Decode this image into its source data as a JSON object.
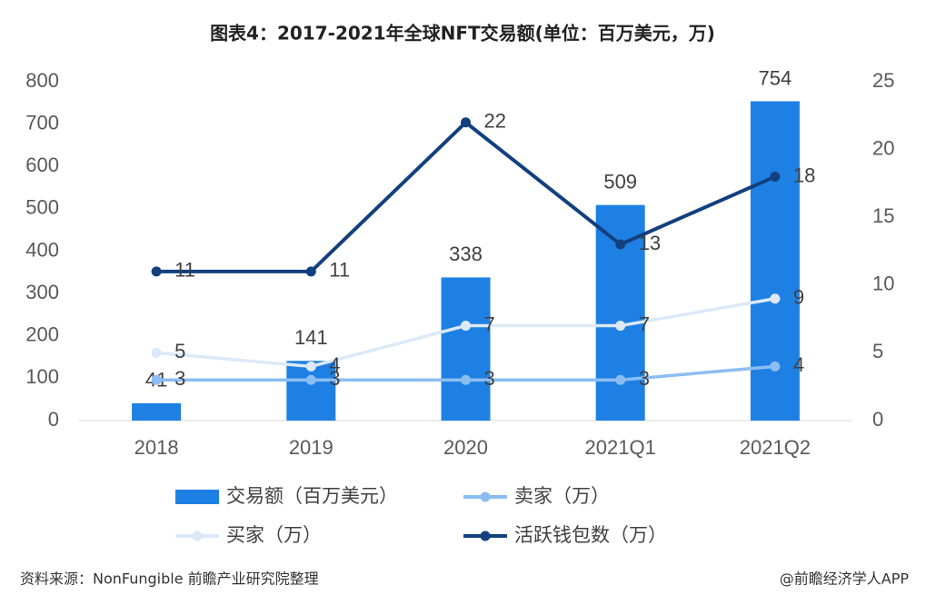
{
  "chart_data": {
    "type": "bar",
    "title": "图表4：2017-2021年全球NFT交易额(单位：百万美元，万)",
    "categories": [
      "2018",
      "2019",
      "2020",
      "2021Q1",
      "2021Q2"
    ],
    "series": [
      {
        "name": "交易额（百万美元）",
        "type": "bar",
        "color": "#1f80e3",
        "values": [
          41,
          141,
          338,
          509,
          754
        ]
      },
      {
        "name": "卖家（万）",
        "type": "line",
        "axis": "y2",
        "color": "#8cbdf2",
        "values": [
          3,
          3,
          3,
          3,
          4
        ]
      },
      {
        "name": "买家（万）",
        "type": "line",
        "axis": "y2",
        "color": "#dbe9f8",
        "values": [
          5,
          4,
          7,
          7,
          9
        ]
      },
      {
        "name": "活跃钱包数（万）",
        "type": "line",
        "axis": "y2",
        "color": "#12407f",
        "values": [
          11,
          11,
          22,
          13,
          18
        ]
      }
    ],
    "ylim": [
      0,
      800
    ],
    "yticks": [
      0,
      100,
      200,
      300,
      400,
      500,
      600,
      700,
      800
    ],
    "y2lim": [
      0,
      25
    ],
    "y2ticks": [
      0,
      5,
      10,
      15,
      20,
      25
    ],
    "source": "资料来源：NonFungible 前瞻产业研究院整理",
    "credit": "@前瞻经济学人APP"
  }
}
